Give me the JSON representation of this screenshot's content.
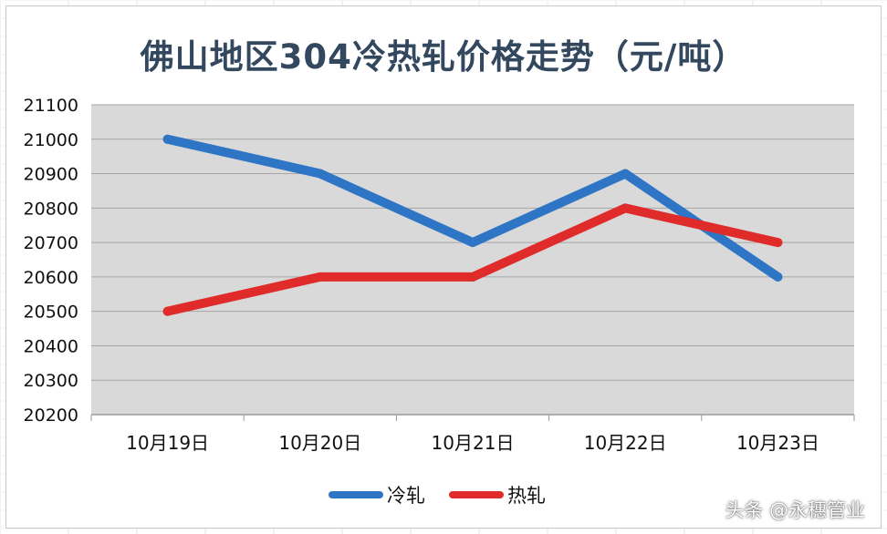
{
  "colors": {
    "plot_bg": "#d9d9d9",
    "grid": "#a6a6a6",
    "cold": "#2e75c6",
    "hot": "#e02b2b",
    "title": "#33485e"
  },
  "watermark": "头条 @永穗管业",
  "chart_data": {
    "type": "line",
    "title": "佛山地区304冷热轧价格走势（元/吨）",
    "categories": [
      "10月19日",
      "10月20日",
      "10月21日",
      "10月22日",
      "10月23日"
    ],
    "series": [
      {
        "name": "冷轧",
        "values": [
          21000,
          20900,
          20700,
          20900,
          20600
        ]
      },
      {
        "name": "热轧",
        "values": [
          20500,
          20600,
          20600,
          20800,
          20700
        ]
      }
    ],
    "ylim": [
      20200,
      21100
    ],
    "yticks": [
      21100,
      21000,
      20900,
      20800,
      20700,
      20600,
      20500,
      20400,
      20300,
      20200
    ],
    "grid": true,
    "legend": "bottom"
  }
}
